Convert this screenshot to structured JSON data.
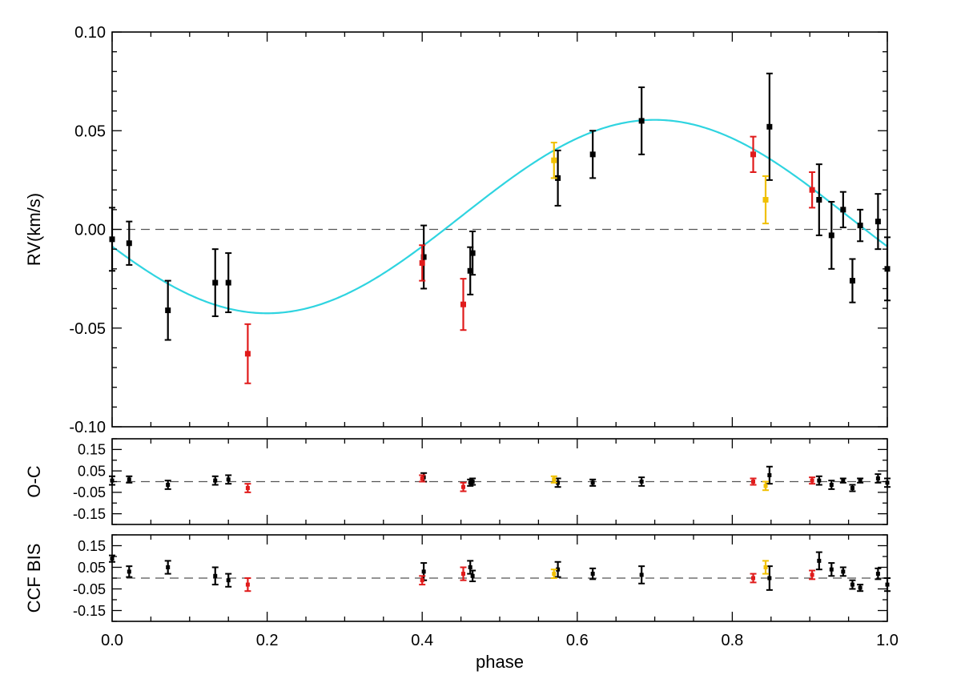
{
  "colors": {
    "model": "#2fd4e0",
    "black": "#000000",
    "red": "#e01b1b",
    "yellow": "#f0c000",
    "zero_line": "#555555"
  },
  "chart_data": [
    {
      "type": "scatter",
      "panel": "rv",
      "ylabel": "RV(km/s)",
      "xlim": [
        0.0,
        1.0
      ],
      "ylim": [
        -0.1,
        0.1
      ],
      "yticks": [
        "0.10",
        "0.05",
        "0.00",
        "-0.05",
        "-0.10"
      ],
      "ytick_values": [
        0.1,
        0.05,
        0.0,
        -0.05,
        -0.1
      ],
      "zero_line": true,
      "model_curve": {
        "type": "sine",
        "mean": 0.0065,
        "amplitude": 0.049,
        "max_phase": 0.7,
        "color": "model"
      },
      "series": [
        {
          "color": "black",
          "points": [
            {
              "x": 0.0,
              "y": -0.005,
              "err": 0.016
            },
            {
              "x": 0.022,
              "y": -0.007,
              "err": 0.011
            },
            {
              "x": 0.072,
              "y": -0.041,
              "err": 0.015
            },
            {
              "x": 0.133,
              "y": -0.027,
              "err": 0.017
            },
            {
              "x": 0.15,
              "y": -0.027,
              "err": 0.015
            },
            {
              "x": 0.402,
              "y": -0.014,
              "err": 0.016
            },
            {
              "x": 0.462,
              "y": -0.021,
              "err": 0.012
            },
            {
              "x": 0.465,
              "y": -0.012,
              "err": 0.011
            },
            {
              "x": 0.575,
              "y": 0.026,
              "err": 0.014
            },
            {
              "x": 0.62,
              "y": 0.038,
              "err": 0.012
            },
            {
              "x": 0.683,
              "y": 0.055,
              "err": 0.017
            },
            {
              "x": 0.848,
              "y": 0.052,
              "err": 0.027
            },
            {
              "x": 0.912,
              "y": 0.015,
              "err": 0.018
            },
            {
              "x": 0.928,
              "y": -0.003,
              "err": 0.017
            },
            {
              "x": 0.943,
              "y": 0.01,
              "err": 0.009
            },
            {
              "x": 0.955,
              "y": -0.026,
              "err": 0.011
            },
            {
              "x": 0.965,
              "y": 0.002,
              "err": 0.008
            },
            {
              "x": 0.988,
              "y": 0.004,
              "err": 0.014
            },
            {
              "x": 1.0,
              "y": -0.02,
              "err": 0.016
            }
          ]
        },
        {
          "color": "red",
          "points": [
            {
              "x": 0.175,
              "y": -0.063,
              "err": 0.015
            },
            {
              "x": 0.4,
              "y": -0.017,
              "err": 0.009
            },
            {
              "x": 0.453,
              "y": -0.038,
              "err": 0.013
            },
            {
              "x": 0.827,
              "y": 0.038,
              "err": 0.009
            },
            {
              "x": 0.903,
              "y": 0.02,
              "err": 0.009
            }
          ]
        },
        {
          "color": "yellow",
          "points": [
            {
              "x": 0.57,
              "y": 0.035,
              "err": 0.009
            },
            {
              "x": 0.843,
              "y": 0.015,
              "err": 0.012
            }
          ]
        }
      ]
    },
    {
      "type": "scatter",
      "panel": "oc",
      "ylabel": "O-C",
      "xlim": [
        0.0,
        1.0
      ],
      "ylim": [
        -0.2,
        0.2
      ],
      "yticks": [
        "0.15",
        "0.05",
        "-0.05",
        "-0.15"
      ],
      "ytick_values": [
        0.15,
        0.05,
        -0.05,
        -0.15
      ],
      "zero_line": true,
      "series": [
        {
          "color": "black",
          "points": [
            {
              "x": 0.0,
              "y": 0.005,
              "err": 0.02
            },
            {
              "x": 0.022,
              "y": 0.01,
              "err": 0.015
            },
            {
              "x": 0.072,
              "y": -0.015,
              "err": 0.02
            },
            {
              "x": 0.133,
              "y": 0.005,
              "err": 0.02
            },
            {
              "x": 0.15,
              "y": 0.01,
              "err": 0.02
            },
            {
              "x": 0.402,
              "y": 0.02,
              "err": 0.02
            },
            {
              "x": 0.462,
              "y": -0.005,
              "err": 0.015
            },
            {
              "x": 0.465,
              "y": 0.0,
              "err": 0.015
            },
            {
              "x": 0.575,
              "y": -0.005,
              "err": 0.02
            },
            {
              "x": 0.62,
              "y": -0.005,
              "err": 0.015
            },
            {
              "x": 0.683,
              "y": 0.0,
              "err": 0.02
            },
            {
              "x": 0.848,
              "y": 0.03,
              "err": 0.04
            },
            {
              "x": 0.912,
              "y": 0.005,
              "err": 0.02
            },
            {
              "x": 0.928,
              "y": -0.015,
              "err": 0.02
            },
            {
              "x": 0.943,
              "y": 0.005,
              "err": 0.01
            },
            {
              "x": 0.955,
              "y": -0.03,
              "err": 0.015
            },
            {
              "x": 0.965,
              "y": 0.005,
              "err": 0.01
            },
            {
              "x": 0.988,
              "y": 0.015,
              "err": 0.02
            },
            {
              "x": 1.0,
              "y": -0.005,
              "err": 0.02
            }
          ]
        },
        {
          "color": "red",
          "points": [
            {
              "x": 0.175,
              "y": -0.03,
              "err": 0.02
            },
            {
              "x": 0.4,
              "y": 0.015,
              "err": 0.015
            },
            {
              "x": 0.453,
              "y": -0.025,
              "err": 0.02
            },
            {
              "x": 0.827,
              "y": 0.0,
              "err": 0.015
            },
            {
              "x": 0.903,
              "y": 0.005,
              "err": 0.015
            }
          ]
        },
        {
          "color": "yellow",
          "points": [
            {
              "x": 0.57,
              "y": 0.01,
              "err": 0.015
            },
            {
              "x": 0.843,
              "y": -0.02,
              "err": 0.02
            }
          ]
        }
      ]
    },
    {
      "type": "scatter",
      "panel": "bis",
      "ylabel": "CCF BIS",
      "xlabel": "phase",
      "xlim": [
        0.0,
        1.0
      ],
      "ylim": [
        -0.2,
        0.2
      ],
      "yticks": [
        "0.15",
        "0.05",
        "-0.05",
        "-0.15"
      ],
      "ytick_values": [
        0.15,
        0.05,
        -0.05,
        -0.15
      ],
      "xticks": [
        "0.0",
        "0.2",
        "0.4",
        "0.6",
        "0.8",
        "1.0"
      ],
      "xtick_values": [
        0.0,
        0.2,
        0.4,
        0.6,
        0.8,
        1.0
      ],
      "zero_line": true,
      "series": [
        {
          "color": "black",
          "points": [
            {
              "x": 0.0,
              "y": 0.09,
              "err": 0.015
            },
            {
              "x": 0.022,
              "y": 0.03,
              "err": 0.025
            },
            {
              "x": 0.072,
              "y": 0.05,
              "err": 0.03
            },
            {
              "x": 0.133,
              "y": 0.01,
              "err": 0.04
            },
            {
              "x": 0.15,
              "y": -0.01,
              "err": 0.03
            },
            {
              "x": 0.402,
              "y": 0.03,
              "err": 0.04
            },
            {
              "x": 0.462,
              "y": 0.05,
              "err": 0.03
            },
            {
              "x": 0.465,
              "y": 0.01,
              "err": 0.025
            },
            {
              "x": 0.575,
              "y": 0.04,
              "err": 0.035
            },
            {
              "x": 0.62,
              "y": 0.02,
              "err": 0.025
            },
            {
              "x": 0.683,
              "y": 0.015,
              "err": 0.04
            },
            {
              "x": 0.848,
              "y": 0.0,
              "err": 0.055
            },
            {
              "x": 0.912,
              "y": 0.08,
              "err": 0.04
            },
            {
              "x": 0.928,
              "y": 0.04,
              "err": 0.03
            },
            {
              "x": 0.943,
              "y": 0.03,
              "err": 0.02
            },
            {
              "x": 0.955,
              "y": -0.03,
              "err": 0.02
            },
            {
              "x": 0.965,
              "y": -0.045,
              "err": 0.015
            },
            {
              "x": 0.988,
              "y": 0.02,
              "err": 0.025
            },
            {
              "x": 1.0,
              "y": -0.03,
              "err": 0.03
            }
          ]
        },
        {
          "color": "red",
          "points": [
            {
              "x": 0.175,
              "y": -0.03,
              "err": 0.03
            },
            {
              "x": 0.4,
              "y": -0.01,
              "err": 0.02
            },
            {
              "x": 0.453,
              "y": 0.02,
              "err": 0.03
            },
            {
              "x": 0.827,
              "y": 0.0,
              "err": 0.02
            },
            {
              "x": 0.903,
              "y": 0.015,
              "err": 0.02
            }
          ]
        },
        {
          "color": "yellow",
          "points": [
            {
              "x": 0.57,
              "y": 0.02,
              "err": 0.02
            },
            {
              "x": 0.843,
              "y": 0.05,
              "err": 0.03
            }
          ]
        }
      ]
    }
  ]
}
